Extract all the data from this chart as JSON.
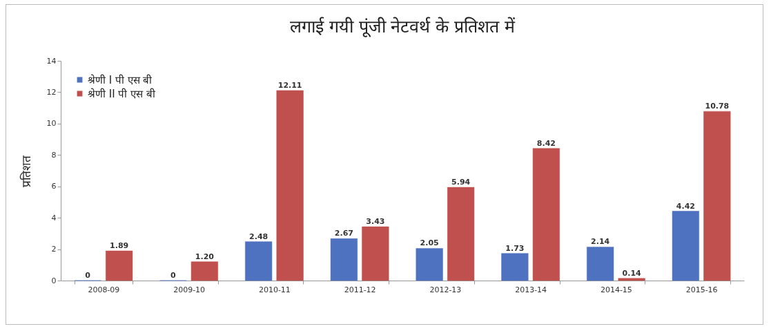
{
  "chart_data": {
    "type": "bar",
    "title": "लगाई गयी पूंजी नेटवर्थ के प्रतिशत में",
    "ylabel": "प्रतिशत",
    "categories": [
      "2008-09",
      "2009-10",
      "2010-11",
      "2011-12",
      "2012-13",
      "2013-14",
      "2014-15",
      "2015-16"
    ],
    "series": [
      {
        "name": "श्रेणी I पी एस बी",
        "color": "#4f72c0",
        "values": [
          0,
          0,
          2.48,
          2.67,
          2.05,
          1.73,
          2.14,
          4.42
        ],
        "value_labels": [
          "0",
          "0",
          "2.48",
          "2.67",
          "2.05",
          "1.73",
          "2.14",
          "4.42"
        ]
      },
      {
        "name": "श्रेणी II पी एस बी",
        "color": "#c0504d",
        "values": [
          1.89,
          1.2,
          12.11,
          3.43,
          5.94,
          8.42,
          0.14,
          10.78
        ],
        "value_labels": [
          "1.89",
          "1.20",
          "12.11",
          "3.43",
          "5.94",
          "8.42",
          "0.14",
          "10.78"
        ]
      }
    ],
    "ylim": [
      0,
      14
    ],
    "yticks": [
      0,
      2,
      4,
      6,
      8,
      10,
      12,
      14
    ],
    "grid": false,
    "legend": "top left"
  }
}
